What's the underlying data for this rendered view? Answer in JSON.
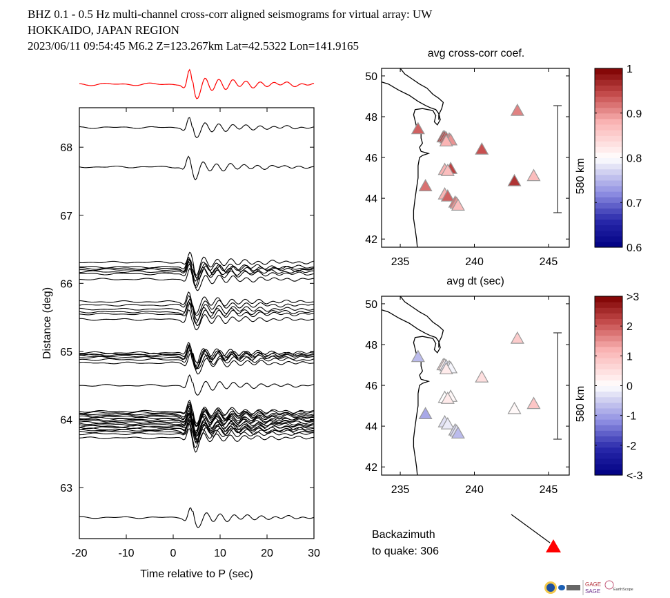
{
  "title": {
    "line1": "BHZ  0.1 - 0.5 Hz  multi-channel cross-corr aligned seismograms for virtual array: UW",
    "line2": "HOKKAIDO, JAPAN REGION",
    "line3": "2023/06/11  09:54:45  M6.2  Z=123.267km Lat=42.5322 Lon=141.9165"
  },
  "backazimuth": {
    "line1": "Backazimuth",
    "line2": "to quake:  306",
    "value": 306,
    "marker_color": "#ff0000"
  },
  "chart_data": [
    {
      "type": "line",
      "name": "seismograms",
      "title": "",
      "xlabel": "Time relative to P (sec)",
      "ylabel": "Distance (deg)",
      "xlim": [
        -20,
        30
      ],
      "ylim": [
        62.25,
        68.58
      ],
      "xticks": [
        "-20",
        "-10",
        "0",
        "10",
        "20",
        "30"
      ],
      "yticks": [
        "63",
        "64",
        "65",
        "66",
        "67",
        "68"
      ],
      "xtick_values": [
        -20,
        -10,
        0,
        10,
        20,
        30
      ],
      "ytick_values": [
        63,
        64,
        65,
        66,
        67,
        68
      ],
      "stack_trace": {
        "color": "#ff0000",
        "label": "stack"
      },
      "trace_color": "#000000",
      "trace_distances_deg": [
        68.29,
        67.71,
        66.31,
        66.24,
        66.22,
        66.2,
        66.17,
        66.14,
        66.06,
        65.73,
        65.68,
        65.62,
        65.58,
        65.55,
        65.47,
        64.98,
        64.96,
        64.95,
        64.93,
        64.91,
        64.88,
        64.83,
        64.5,
        64.12,
        64.1,
        64.08,
        64.06,
        64.04,
        64.02,
        64.0,
        63.98,
        63.96,
        63.94,
        63.92,
        63.9,
        63.88,
        63.86,
        63.84,
        63.82,
        63.79,
        63.73,
        62.56
      ],
      "p_arrival_peak_sec": 3.5
    },
    {
      "type": "scatter",
      "name": "avg-cross-corr-map",
      "title": "avg cross-corr coef.",
      "xlabel": "avg dt (sec)",
      "ylabel": "",
      "xlim": [
        233.74,
        246.4
      ],
      "ylim": [
        41.6,
        50.37
      ],
      "xticks": [
        "235",
        "240",
        "245"
      ],
      "yticks": [
        "42",
        "44",
        "46",
        "48",
        "50"
      ],
      "xtick_values": [
        235,
        240,
        245
      ],
      "ytick_values": [
        42,
        44,
        46,
        48,
        50
      ],
      "scale_bar_label": "580 km",
      "colorbar": {
        "min": 0.6,
        "max": 1.0,
        "ticks": [
          "0.6",
          "0.7",
          "0.8",
          "0.9",
          "1"
        ],
        "tick_values": [
          0.6,
          0.7,
          0.8,
          0.9,
          1.0
        ],
        "center": 0.8
      },
      "points": [
        {
          "x": 236.2,
          "y": 47.4,
          "v": 0.93
        },
        {
          "x": 237.9,
          "y": 47.0,
          "v": 0.96
        },
        {
          "x": 238.0,
          "y": 47.0,
          "v": 0.95
        },
        {
          "x": 238.1,
          "y": 46.95,
          "v": 0.94
        },
        {
          "x": 238.3,
          "y": 46.9,
          "v": 0.91
        },
        {
          "x": 238.4,
          "y": 46.85,
          "v": 0.9
        },
        {
          "x": 238.1,
          "y": 46.8,
          "v": 0.88
        },
        {
          "x": 240.5,
          "y": 46.4,
          "v": 0.94
        },
        {
          "x": 238.4,
          "y": 45.45,
          "v": 0.95
        },
        {
          "x": 238.0,
          "y": 45.4,
          "v": 0.88
        },
        {
          "x": 238.2,
          "y": 45.35,
          "v": 0.87
        },
        {
          "x": 236.7,
          "y": 44.6,
          "v": 0.92
        },
        {
          "x": 242.7,
          "y": 44.85,
          "v": 0.96
        },
        {
          "x": 244.0,
          "y": 45.1,
          "v": 0.87
        },
        {
          "x": 242.9,
          "y": 48.3,
          "v": 0.91
        },
        {
          "x": 238.0,
          "y": 44.2,
          "v": 0.88
        },
        {
          "x": 238.2,
          "y": 44.1,
          "v": 0.93
        },
        {
          "x": 238.7,
          "y": 43.8,
          "v": 0.92
        },
        {
          "x": 238.8,
          "y": 43.75,
          "v": 0.9
        },
        {
          "x": 238.9,
          "y": 43.65,
          "v": 0.87
        }
      ]
    },
    {
      "type": "scatter",
      "name": "dt-residual-map",
      "title": "",
      "xlabel": "",
      "ylabel": "",
      "xlim": [
        233.74,
        246.4
      ],
      "ylim": [
        41.6,
        50.37
      ],
      "xticks": [
        "235",
        "240",
        "245"
      ],
      "yticks": [
        "42",
        "44",
        "46",
        "48",
        "50"
      ],
      "xtick_values": [
        235,
        240,
        245
      ],
      "ytick_values": [
        42,
        44,
        46,
        48,
        50
      ],
      "scale_bar_label": "580 km",
      "colorbar": {
        "min": -3,
        "max": 3,
        "ticks": [
          "<-3",
          "-2",
          "-1",
          "0",
          "1",
          "2",
          ">3"
        ],
        "tick_values": [
          -3,
          -2,
          -1,
          0,
          1,
          2,
          3
        ],
        "center": 0
      },
      "points": [
        {
          "x": 236.2,
          "y": 47.4,
          "v": -0.7
        },
        {
          "x": 237.9,
          "y": 47.0,
          "v": 0.6
        },
        {
          "x": 238.0,
          "y": 47.0,
          "v": 0.2
        },
        {
          "x": 238.1,
          "y": 46.95,
          "v": -0.3
        },
        {
          "x": 238.3,
          "y": 46.9,
          "v": -0.2
        },
        {
          "x": 238.4,
          "y": 46.85,
          "v": -0.1
        },
        {
          "x": 238.1,
          "y": 46.8,
          "v": 0.3
        },
        {
          "x": 240.5,
          "y": 46.4,
          "v": 0.5
        },
        {
          "x": 238.4,
          "y": 45.45,
          "v": 0.1
        },
        {
          "x": 238.0,
          "y": 45.4,
          "v": 0.0
        },
        {
          "x": 238.2,
          "y": 45.35,
          "v": 0.3
        },
        {
          "x": 236.7,
          "y": 44.6,
          "v": -0.9
        },
        {
          "x": 242.7,
          "y": 44.85,
          "v": 0.1
        },
        {
          "x": 244.0,
          "y": 45.1,
          "v": 0.9
        },
        {
          "x": 242.9,
          "y": 48.3,
          "v": 0.8
        },
        {
          "x": 238.0,
          "y": 44.2,
          "v": -0.3
        },
        {
          "x": 238.2,
          "y": 44.1,
          "v": -0.2
        },
        {
          "x": 238.7,
          "y": 43.8,
          "v": -0.4
        },
        {
          "x": 238.8,
          "y": 43.75,
          "v": -0.3
        },
        {
          "x": 238.9,
          "y": 43.65,
          "v": -0.7
        }
      ]
    }
  ],
  "logos": [
    "NSF",
    "NASA",
    "USGS",
    "GAGE",
    "SAGE",
    "EarthScope Consortium"
  ],
  "colors": {
    "stack": "#ff0000",
    "marker": "#ff0000",
    "gage": "#b5323c",
    "sage": "#6a2c8a"
  }
}
